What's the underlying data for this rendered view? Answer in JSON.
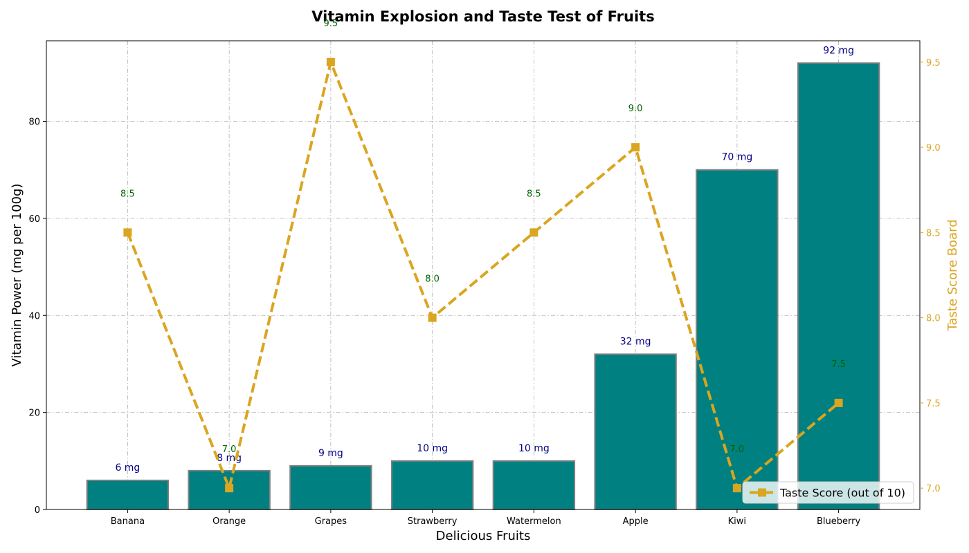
{
  "chart_data": {
    "type": "bar",
    "title": "Vitamin Explosion and Taste Test of Fruits",
    "xlabel": "Delicious Fruits",
    "ylabel": "Vitamin Power (mg per 100g)",
    "y2label": "Taste Score Board",
    "categories": [
      "Banana",
      "Orange",
      "Grapes",
      "Strawberry",
      "Watermelon",
      "Apple",
      "Kiwi",
      "Blueberry"
    ],
    "series": [
      {
        "type": "bar",
        "axis": "left",
        "values": [
          6,
          8,
          9,
          10,
          10,
          32,
          70,
          92
        ],
        "labels": [
          "6 mg",
          "8 mg",
          "9 mg",
          "10 mg",
          "10 mg",
          "32 mg",
          "70 mg",
          "92 mg"
        ],
        "color": "#008080",
        "edge_color": "#808080"
      },
      {
        "type": "line",
        "axis": "right",
        "name": "Taste Score (out of 10)",
        "values": [
          8.5,
          7.0,
          9.5,
          8.0,
          8.5,
          9.0,
          7.0,
          7.5
        ],
        "labels": [
          "8.5",
          "7.0",
          "9.5",
          "8.0",
          "8.5",
          "9.0",
          "7.0",
          "7.5"
        ],
        "color": "#DAA520",
        "marker": "square",
        "linestyle": "dashed"
      }
    ],
    "ylim": [
      0,
      96.6
    ],
    "yticks": [
      0,
      20,
      40,
      60,
      80
    ],
    "y2lim": [
      6.875,
      9.625
    ],
    "y2ticks": [
      "7.0",
      "7.5",
      "8.0",
      "8.5",
      "9.0",
      "9.5"
    ],
    "y2label_color": "#DAA520",
    "bar_label_color": "#000080",
    "score_label_color": "#006400",
    "grid": true,
    "legend_position": "lower-right"
  }
}
